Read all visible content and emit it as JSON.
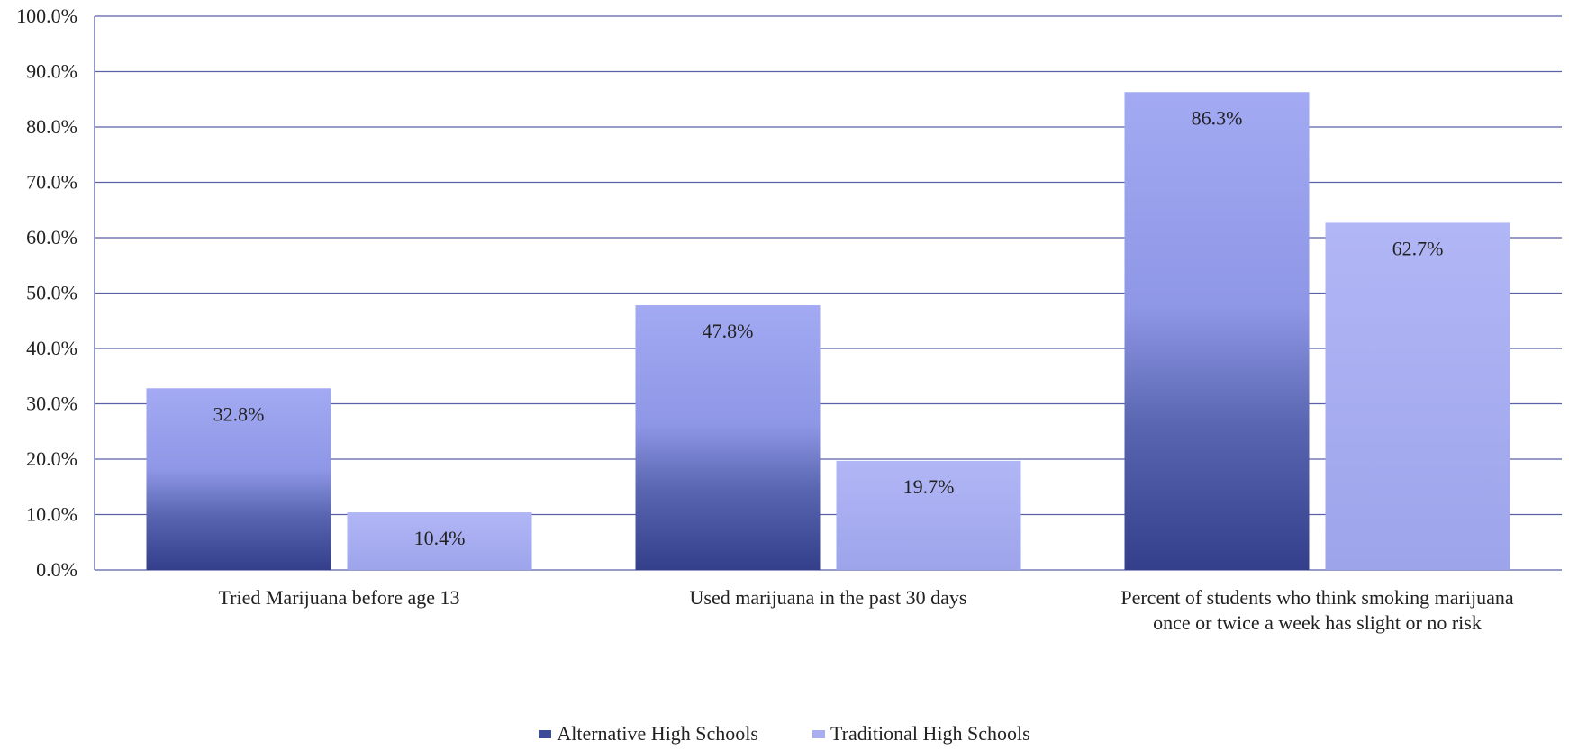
{
  "chart_data": {
    "type": "bar",
    "categories": [
      [
        "Tried Marijuana before age 13"
      ],
      [
        "Used marijuana in the past 30 days"
      ],
      [
        "Percent of students who think smoking marijuana",
        "once or twice a week has slight or no risk"
      ]
    ],
    "series": [
      {
        "name": "Alternative High Schools",
        "values": [
          32.8,
          47.8,
          86.3
        ],
        "labels": [
          "32.8%",
          "47.8%",
          "86.3%"
        ],
        "color": "#3d4a96",
        "top_color": "#a3aaf3"
      },
      {
        "name": "Traditional High Schools",
        "values": [
          10.4,
          19.7,
          62.7
        ],
        "labels": [
          "10.4%",
          "19.7%",
          "62.7%"
        ],
        "color": "#a8aef0"
      }
    ],
    "ylim": [
      0,
      100
    ],
    "yticks": [
      "0.0%",
      "10.0%",
      "20.0%",
      "30.0%",
      "40.0%",
      "50.0%",
      "60.0%",
      "70.0%",
      "80.0%",
      "90.0%",
      "100.0%"
    ],
    "grid": true,
    "gridline_color": "#5a5fa8",
    "legend_position": "bottom"
  }
}
